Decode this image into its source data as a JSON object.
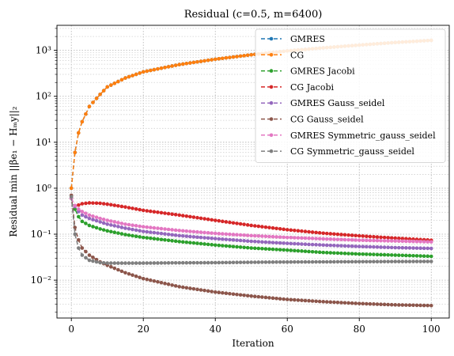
{
  "chart_data": {
    "type": "line",
    "title": "Residual (c=0.5, m=6400)",
    "xlabel": "Iteration",
    "ylabel": "Residual min ||βe₁ − Hₘy||₂",
    "xlim": [
      -4,
      105
    ],
    "ylim": [
      0.0015,
      3500
    ],
    "yscale": "log",
    "grid": true,
    "legend_position": "top-right",
    "x_ticks": [
      0,
      20,
      40,
      60,
      80,
      100
    ],
    "x_tick_labels": [
      "0",
      "20",
      "40",
      "60",
      "80",
      "100"
    ],
    "y_ticks": [
      0.01,
      0.1,
      1,
      10,
      100,
      1000
    ],
    "y_tick_labels": [
      "10⁻²",
      "10⁻¹",
      "10⁰",
      "10¹",
      "10²",
      "10³"
    ],
    "series": [
      {
        "name": "GMRES",
        "color": "#1f77b4",
        "dash": true,
        "x": [
          0,
          1,
          2,
          3,
          5,
          8,
          10,
          15,
          20,
          30,
          40,
          50,
          60,
          70,
          80,
          90,
          100
        ],
        "y": [
          1.0,
          6.0,
          16,
          28,
          60,
          110,
          160,
          250,
          340,
          490,
          640,
          800,
          970,
          1130,
          1300,
          1480,
          1650
        ]
      },
      {
        "name": "CG",
        "color": "#ff7f0e",
        "dash": true,
        "x": [
          0,
          1,
          2,
          3,
          5,
          8,
          10,
          15,
          20,
          30,
          40,
          50,
          60,
          70,
          80,
          90,
          100
        ],
        "y": [
          1.0,
          6.0,
          16,
          28,
          60,
          110,
          160,
          250,
          340,
          490,
          640,
          800,
          970,
          1130,
          1300,
          1480,
          1650
        ]
      },
      {
        "name": "GMRES Jacobi",
        "color": "#2ca02c",
        "dash": true,
        "x": [
          0,
          1,
          2,
          3,
          5,
          8,
          10,
          15,
          20,
          30,
          40,
          50,
          60,
          70,
          80,
          90,
          100
        ],
        "y": [
          0.6,
          0.35,
          0.24,
          0.19,
          0.155,
          0.13,
          0.118,
          0.098,
          0.085,
          0.069,
          0.058,
          0.05,
          0.045,
          0.04,
          0.037,
          0.035,
          0.033
        ]
      },
      {
        "name": "CG Jacobi",
        "color": "#d62728",
        "dash": true,
        "x": [
          0,
          1,
          2,
          3,
          5,
          8,
          10,
          15,
          20,
          30,
          40,
          50,
          60,
          70,
          80,
          90,
          100
        ],
        "y": [
          0.6,
          0.4,
          0.43,
          0.46,
          0.48,
          0.47,
          0.45,
          0.39,
          0.33,
          0.26,
          0.2,
          0.155,
          0.125,
          0.105,
          0.092,
          0.082,
          0.074
        ]
      },
      {
        "name": "GMRES Gauss_seidel",
        "color": "#9467bd",
        "dash": true,
        "x": [
          0,
          1,
          2,
          3,
          5,
          8,
          10,
          15,
          20,
          30,
          40,
          50,
          60,
          70,
          80,
          90,
          100
        ],
        "y": [
          0.6,
          0.4,
          0.31,
          0.26,
          0.22,
          0.185,
          0.165,
          0.135,
          0.115,
          0.093,
          0.08,
          0.07,
          0.063,
          0.058,
          0.054,
          0.051,
          0.049
        ]
      },
      {
        "name": "CG Gauss_seidel",
        "color": "#8c564b",
        "dash": true,
        "x": [
          0,
          1,
          2,
          3,
          5,
          8,
          10,
          15,
          20,
          30,
          40,
          50,
          60,
          70,
          80,
          90,
          100
        ],
        "y": [
          0.7,
          0.14,
          0.075,
          0.05,
          0.035,
          0.025,
          0.021,
          0.0145,
          0.0108,
          0.0072,
          0.0055,
          0.0045,
          0.0038,
          0.0034,
          0.0031,
          0.0029,
          0.0028
        ]
      },
      {
        "name": "GMRES Symmetric_gauss_seidel",
        "color": "#e377c2",
        "dash": true,
        "x": [
          0,
          1,
          2,
          3,
          5,
          8,
          10,
          15,
          20,
          30,
          40,
          50,
          60,
          70,
          80,
          90,
          100
        ],
        "y": [
          0.6,
          0.42,
          0.35,
          0.31,
          0.26,
          0.22,
          0.2,
          0.165,
          0.145,
          0.12,
          0.104,
          0.093,
          0.085,
          0.079,
          0.074,
          0.071,
          0.068
        ]
      },
      {
        "name": "CG Symmetric_gauss_seidel",
        "color": "#7f7f7f",
        "dash": true,
        "x": [
          0,
          1,
          2,
          3,
          5,
          8,
          10,
          15,
          20,
          30,
          40,
          50,
          60,
          70,
          80,
          90,
          100
        ],
        "y": [
          0.65,
          0.1,
          0.05,
          0.035,
          0.027,
          0.024,
          0.0235,
          0.0235,
          0.0235,
          0.0238,
          0.024,
          0.0245,
          0.0248,
          0.025,
          0.0252,
          0.0254,
          0.0255
        ]
      }
    ]
  }
}
